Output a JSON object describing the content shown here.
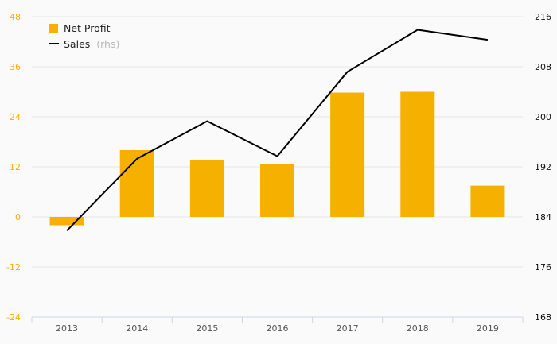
{
  "chart_data": {
    "type": "bar",
    "categories": [
      "2013",
      "2014",
      "2015",
      "2016",
      "2017",
      "2018",
      "2019"
    ],
    "series": [
      {
        "name": "Net Profit",
        "type": "bar",
        "axis": "left",
        "color": "#f5b000",
        "values": [
          -2,
          16,
          13.7,
          12.7,
          29.8,
          30,
          7.5
        ]
      },
      {
        "name": "Sales",
        "type": "line",
        "axis": "right",
        "color": "#000000",
        "values": [
          181.8,
          193.3,
          199.3,
          193.7,
          207.2,
          213.9,
          212.3
        ]
      }
    ],
    "legend": {
      "position": "top-left",
      "items": [
        {
          "label": "Net Profit",
          "note": ""
        },
        {
          "label": "Sales",
          "note": "(rhs)"
        }
      ]
    },
    "yaxis_left": {
      "range": [
        -24,
        48
      ],
      "ticks": [
        "48",
        "36",
        "24",
        "12",
        "0",
        "-12",
        "-24"
      ],
      "color": "#f5b000"
    },
    "yaxis_right": {
      "range": [
        168,
        216
      ],
      "ticks": [
        "216",
        "208",
        "200",
        "192",
        "184",
        "176",
        "168"
      ],
      "color": "#111111"
    },
    "grid": true,
    "title": "",
    "xlabel": "",
    "ylabel": ""
  }
}
